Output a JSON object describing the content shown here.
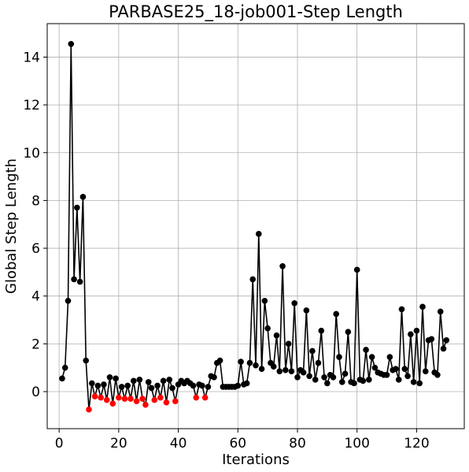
{
  "chart_data": {
    "type": "line",
    "title": "PARBASE25_18-job001-Step Length",
    "xlabel": "Iterations",
    "ylabel": "Global Step Length",
    "xlim": [
      -4,
      136
    ],
    "ylim": [
      -1.55,
      15.4
    ],
    "xticks": [
      0,
      20,
      40,
      60,
      80,
      100,
      120
    ],
    "yticks": [
      0,
      2,
      4,
      6,
      8,
      10,
      12,
      14
    ],
    "grid": true,
    "legend": "none",
    "line_color": "#000000",
    "normal_marker_color": "#000000",
    "highlight_marker_color": "#ff0000",
    "x": [
      1,
      2,
      3,
      4,
      5,
      6,
      7,
      8,
      9,
      10,
      11,
      12,
      13,
      14,
      15,
      16,
      17,
      18,
      19,
      20,
      21,
      22,
      23,
      24,
      25,
      26,
      27,
      28,
      29,
      30,
      31,
      32,
      33,
      34,
      35,
      36,
      37,
      38,
      39,
      40,
      41,
      42,
      43,
      44,
      45,
      46,
      47,
      48,
      49,
      50,
      51,
      52,
      53,
      54,
      55,
      56,
      57,
      58,
      59,
      60,
      61,
      62,
      63,
      64,
      65,
      66,
      67,
      68,
      69,
      70,
      71,
      72,
      73,
      74,
      75,
      76,
      77,
      78,
      79,
      80,
      81,
      82,
      83,
      84,
      85,
      86,
      87,
      88,
      89,
      90,
      91,
      92,
      93,
      94,
      95,
      96,
      97,
      98,
      99,
      100,
      101,
      102,
      103,
      104,
      105,
      106,
      107,
      108,
      109,
      110,
      111,
      112,
      113,
      114,
      115,
      116,
      117,
      118,
      119,
      120,
      121,
      122,
      123,
      124,
      125,
      126,
      127,
      128,
      129,
      130
    ],
    "values": [
      0.55,
      1.0,
      3.8,
      14.55,
      4.7,
      7.7,
      4.6,
      8.15,
      1.3,
      -0.75,
      0.35,
      -0.2,
      0.25,
      -0.25,
      0.3,
      -0.35,
      0.6,
      -0.5,
      0.55,
      -0.25,
      0.2,
      -0.3,
      0.25,
      -0.3,
      0.45,
      -0.4,
      0.5,
      -0.3,
      -0.55,
      0.4,
      0.15,
      -0.35,
      0.25,
      -0.25,
      0.45,
      -0.45,
      0.5,
      0.15,
      -0.4,
      0.3,
      0.45,
      0.35,
      0.45,
      0.35,
      0.25,
      -0.25,
      0.3,
      0.25,
      -0.25,
      0.2,
      0.65,
      0.6,
      1.2,
      1.3,
      0.2,
      0.2,
      0.2,
      0.2,
      0.2,
      0.25,
      1.25,
      0.3,
      0.35,
      1.2,
      4.7,
      1.1,
      6.6,
      0.95,
      3.8,
      2.65,
      1.2,
      1.05,
      2.35,
      0.85,
      5.25,
      0.9,
      2.0,
      0.85,
      3.7,
      0.6,
      0.9,
      0.8,
      3.4,
      0.65,
      1.7,
      0.5,
      1.2,
      2.55,
      0.6,
      0.35,
      0.7,
      0.6,
      3.25,
      1.45,
      0.4,
      0.75,
      2.5,
      0.4,
      0.35,
      5.1,
      0.5,
      0.45,
      1.75,
      0.5,
      1.45,
      1.0,
      0.8,
      0.75,
      0.7,
      0.7,
      1.45,
      0.9,
      0.95,
      0.5,
      3.45,
      0.95,
      0.65,
      2.4,
      0.4,
      2.55,
      0.35,
      3.55,
      0.85,
      2.15,
      2.2,
      0.8,
      0.7,
      3.35,
      1.8,
      2.15
    ]
  }
}
